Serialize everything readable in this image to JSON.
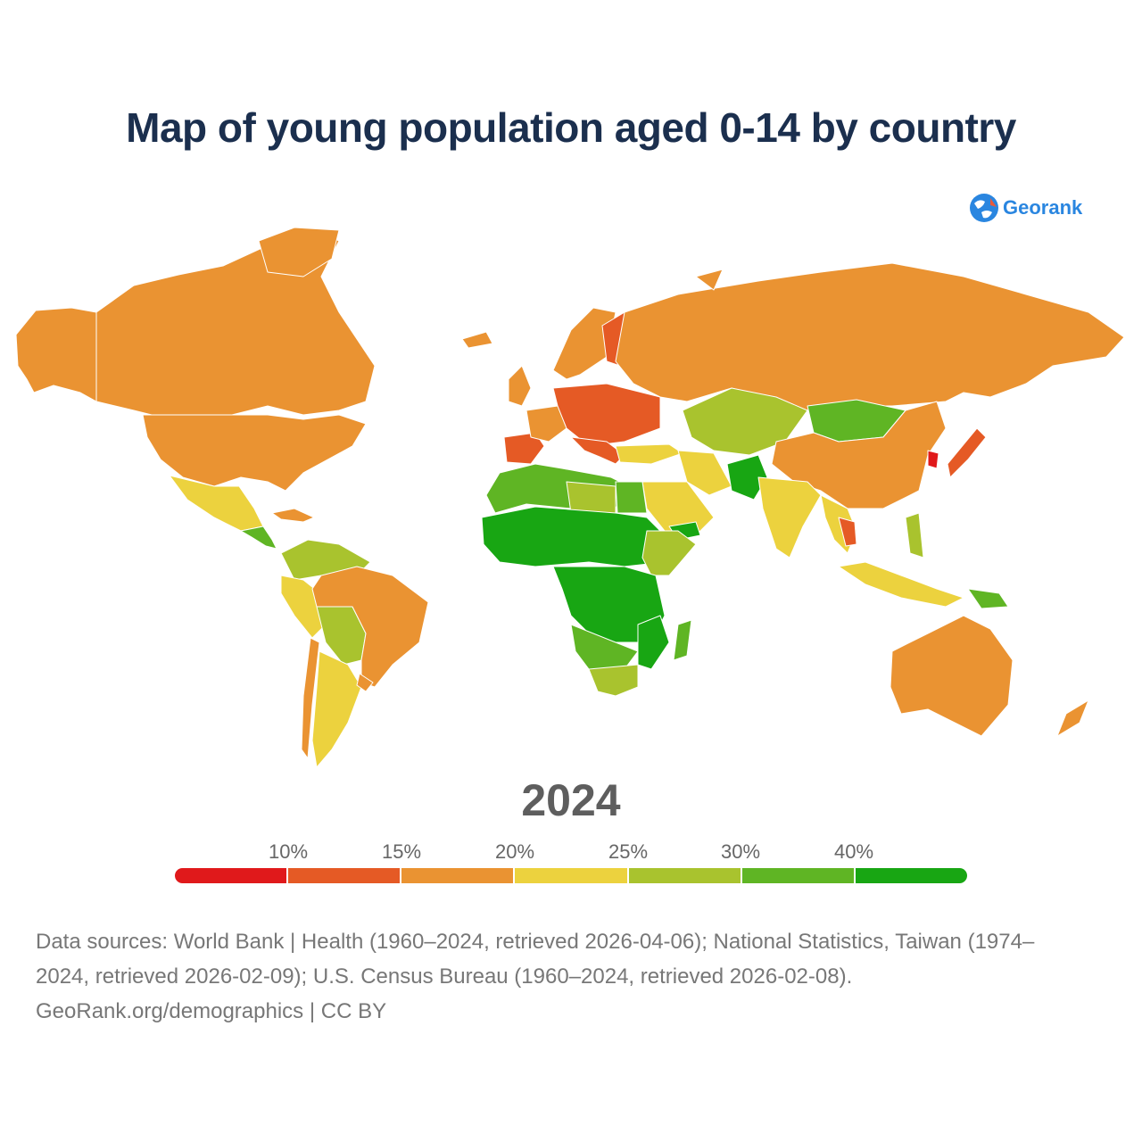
{
  "title": "Map of young population aged 0-14 by country",
  "logo": {
    "text": "Georank",
    "icon": "globe-icon"
  },
  "year": "2024",
  "legend": {
    "ticks": [
      "10%",
      "15%",
      "20%",
      "25%",
      "30%",
      "40%"
    ],
    "colors": [
      "#e0191b",
      "#e55a25",
      "#ea9332",
      "#ecd23e",
      "#a9c32e",
      "#5fb524",
      "#18a613"
    ]
  },
  "map": {
    "colors": {
      "red": "#e0191b",
      "red_orange": "#e55a25",
      "orange": "#ea9332",
      "yellow": "#ecd23e",
      "yellow_green": "#a9c32e",
      "green": "#5fb524",
      "dark_green": "#18a613"
    }
  },
  "sources": {
    "line1": "Data sources: World Bank | Health (1960–2024, retrieved 2026-04-06); National Statistics, Taiwan (1974–",
    "line2": "2024, retrieved 2026-02-09); U.S. Census Bureau (1960–2024, retrieved 2026-02-08).",
    "line3": "GeoRank.org/demographics | CC BY"
  }
}
